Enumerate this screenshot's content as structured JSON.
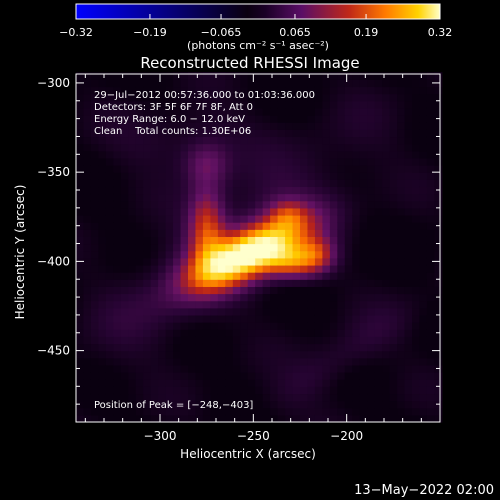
{
  "chart_data": {
    "type": "heatmap",
    "title": "Reconstructed RHESSI Image",
    "xlabel": "Heliocentric X (arcsec)",
    "ylabel": "Heliocentric Y (arcsec)",
    "xlim": [
      -345,
      -150
    ],
    "ylim": [
      -490,
      -295
    ],
    "x_ticks": [
      -300,
      -250,
      -200
    ],
    "y_ticks": [
      -300,
      -350,
      -400,
      -450
    ],
    "x_tick_labels": [
      "−300",
      "−250",
      "−200"
    ],
    "y_tick_labels": [
      "−300",
      "−350",
      "−400",
      "−450"
    ],
    "colorbar": {
      "min": -0.32,
      "max": 0.32,
      "ticks": [
        -0.32,
        -0.19,
        -0.065,
        0.065,
        0.19,
        0.32
      ],
      "tick_labels": [
        "−0.32",
        "−0.19",
        "−0.065",
        "0.065",
        "0.19",
        "0.32"
      ],
      "units_label": "(photons cm⁻² s⁻¹ asec⁻²)"
    },
    "annotations": [
      "29−Jul−2012 00:57:36.000 to 01:03:36.000",
      "Detectors: 3F 5F 6F 7F 8F, Att 0",
      "Energy Range: 6.0 − 12.0 keV",
      "Clean    Total counts: 1.30E+06"
    ],
    "peak_label": "Position of Peak = [−248,−403]",
    "peak": [
      -248,
      -403
    ],
    "sources": [
      {
        "x": -252,
        "y": -395,
        "sx": 24,
        "sy": 9,
        "rot": 28,
        "amp": 0.3
      },
      {
        "x": -275,
        "y": -380,
        "sx": 7,
        "sy": 16,
        "rot": 0,
        "amp": 0.14
      },
      {
        "x": -228,
        "y": -400,
        "sx": 11,
        "sy": 7,
        "rot": 0,
        "amp": 0.17
      },
      {
        "x": -215,
        "y": -395,
        "sx": 7,
        "sy": 7,
        "rot": 0,
        "amp": 0.09
      },
      {
        "x": -275,
        "y": -345,
        "sx": 9,
        "sy": 9,
        "rot": 0,
        "amp": 0.08
      },
      {
        "x": -232,
        "y": -373,
        "sx": 7,
        "sy": 6,
        "rot": 0,
        "amp": 0.07
      },
      {
        "x": -262,
        "y": -390,
        "sx": 60,
        "sy": 18,
        "rot": 40,
        "amp": 0.055
      },
      {
        "x": -205,
        "y": -455,
        "sx": 35,
        "sy": 9,
        "rot": 35,
        "amp": 0.04
      },
      {
        "x": -290,
        "y": -330,
        "sx": 25,
        "sy": 12,
        "rot": 10,
        "amp": 0.035
      }
    ]
  },
  "timestamp": "13−May−2022 02:00"
}
